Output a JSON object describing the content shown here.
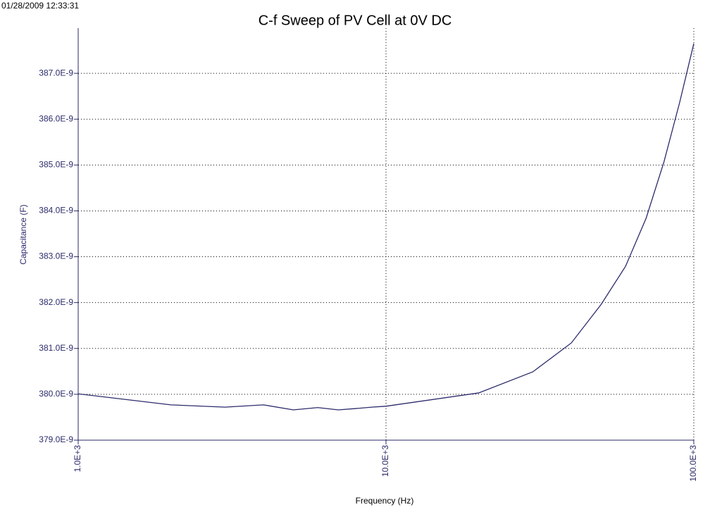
{
  "chart_data": {
    "type": "line",
    "timestamp": "01/28/2009 12:33:31",
    "title": "C-f Sweep of PV Cell at 0V DC",
    "x_label": "Frequency (Hz)",
    "y_label": "Capacitance (F)",
    "x_scale": "log",
    "grid": true,
    "xlim": [
      1000,
      100000
    ],
    "ylim": [
      3.79e-07,
      3.88e-07
    ],
    "xticks": [
      {
        "value": 1000,
        "label": "1.0E+3"
      },
      {
        "value": 10000,
        "label": "10.0E+3"
      },
      {
        "value": 100000,
        "label": "100.0E+3"
      }
    ],
    "yticks": [
      {
        "value": 3.79e-07,
        "label": "379.0E-9"
      },
      {
        "value": 3.8e-07,
        "label": "380.0E-9"
      },
      {
        "value": 3.81e-07,
        "label": "381.0E-9"
      },
      {
        "value": 3.82e-07,
        "label": "382.0E-9"
      },
      {
        "value": 3.83e-07,
        "label": "383.0E-9"
      },
      {
        "value": 3.84e-07,
        "label": "384.0E-9"
      },
      {
        "value": 3.85e-07,
        "label": "385.0E-9"
      },
      {
        "value": 3.86e-07,
        "label": "386.0E-9"
      },
      {
        "value": 3.87e-07,
        "label": "387.0E-9"
      }
    ],
    "x": [
      1000,
      2000,
      3000,
      4000,
      5000,
      6000,
      7000,
      8000,
      9000,
      10000,
      20000,
      30000,
      40000,
      50000,
      60000,
      70000,
      80000,
      90000,
      100000
    ],
    "series": [
      {
        "color": "#2b2b6b",
        "values": [
          3.8001e-07,
          3.7977e-07,
          3.7972e-07,
          3.7977e-07,
          3.7966e-07,
          3.7971e-07,
          3.7966e-07,
          3.7969e-07,
          3.7972e-07,
          3.7974e-07,
          3.8003e-07,
          3.8049e-07,
          3.8112e-07,
          3.8196e-07,
          3.8279e-07,
          3.8384e-07,
          3.8507e-07,
          3.8637e-07,
          3.8765e-07
        ]
      }
    ]
  }
}
